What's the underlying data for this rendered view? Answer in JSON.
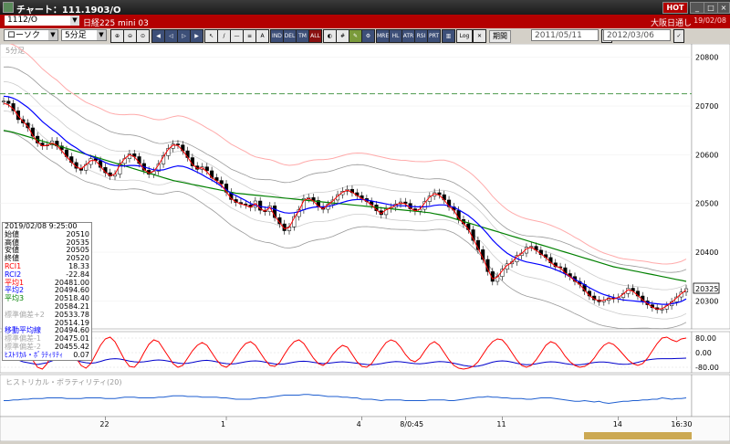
{
  "window": {
    "title": "チャート：111.1903/O",
    "hot_label": "HOT"
  },
  "symbol_bar": {
    "code": "1112/O",
    "name": "日経225 mini 03",
    "exchange": "大阪日通し",
    "date": "19/02/08"
  },
  "toolbar": {
    "chart_type": "ローソク",
    "interval": "5分足",
    "buttons": [
      "IND",
      "DEL",
      "TM",
      "ALL",
      "MRE",
      "HL",
      "ATR",
      "RSI",
      "PRT",
      "Log"
    ],
    "period_label": "期間",
    "date_from": "2011/05/11",
    "date_to": "2012/03/06"
  },
  "chart": {
    "interval_label": "5分足",
    "price_ticks": [
      "20800",
      "20700",
      "20600",
      "20500",
      "20400",
      "20300"
    ],
    "current_price": "20325",
    "osc_ticks": [
      "80.00",
      "0.00",
      "-80.00"
    ],
    "date_labels": [
      "22",
      "1",
      "4",
      "8/0:45",
      "11",
      "14",
      "16:30"
    ],
    "sub_title": "ヒストリカル・ボラティリティ(20)",
    "colors": {
      "price": "#000000",
      "ma_short": "#ff0000",
      "ma_mid": "#0000ff",
      "ma_long": "#008000",
      "bands": "#999999",
      "upper_band": "#ffaaaa"
    }
  },
  "chart_data": {
    "type": "line",
    "price_ylim": [
      20250,
      20820
    ],
    "candles_close": [
      20710,
      20705,
      20690,
      20672,
      20665,
      20655,
      20638,
      20624,
      20618,
      20620,
      20628,
      20618,
      20610,
      20596,
      20584,
      20572,
      20568,
      20580,
      20592,
      20588,
      20574,
      20563,
      20556,
      20560,
      20582,
      20592,
      20602,
      20596,
      20582,
      20568,
      20560,
      20566,
      20581,
      20598,
      20613,
      20622,
      20620,
      20608,
      20594,
      20577,
      20570,
      20575,
      20567,
      20553,
      20547,
      20540,
      20523,
      20508,
      20502,
      20499,
      20497,
      20492,
      20505,
      20486,
      20483,
      20495,
      20471,
      20458,
      20444,
      20452,
      20473,
      20487,
      20510,
      20512,
      20506,
      20493,
      20488,
      20498,
      20507,
      20518,
      20525,
      20529,
      20522,
      20516,
      20510,
      20504,
      20497,
      20485,
      20477,
      20489,
      20492,
      20499,
      20503,
      20500,
      20489,
      20484,
      20488,
      20504,
      20515,
      20522,
      20518,
      20507,
      20493,
      20486,
      20467,
      20458,
      20446,
      20424,
      20405,
      20385,
      20360,
      20340,
      20350,
      20365,
      20376,
      20380,
      20393,
      20398,
      20410,
      20412,
      20404,
      20395,
      20389,
      20378,
      20370,
      20368,
      20356,
      20350,
      20340,
      20334,
      20320,
      20310,
      20302,
      20298,
      20301,
      20306,
      20304,
      20307,
      20315,
      20326,
      20320,
      20310,
      20300,
      20292,
      20286,
      20282,
      20283,
      20290,
      20298,
      20308,
      20318,
      20325
    ],
    "ma_short": [
      20706,
      20702,
      20694,
      20680,
      20668,
      20658,
      20640,
      20626,
      20618,
      20619,
      20624,
      20619,
      20608,
      20596,
      20585,
      20575,
      20571,
      20579,
      20588,
      20588,
      20576,
      20564,
      20557,
      20560,
      20579,
      20592,
      20600,
      20596,
      20584,
      20570,
      20562,
      20566,
      20579,
      20596,
      20611,
      20620,
      20619,
      20608,
      20595,
      20580,
      20572,
      20573,
      20565,
      20553,
      20546,
      20538,
      20524,
      20510,
      20503,
      20499,
      20496,
      20492,
      20500,
      20489,
      20484,
      20492,
      20474,
      20461,
      20448,
      20451,
      20470,
      20485,
      20506,
      20510,
      20505,
      20494,
      20489,
      20497,
      20505,
      20515,
      20523,
      20527,
      20523,
      20516,
      20510,
      20504,
      20497,
      20487,
      20479,
      20487,
      20491,
      20497,
      20501,
      20499,
      20490,
      20485,
      20488,
      20501,
      20513,
      20520,
      20517,
      20507,
      20494,
      20486,
      20469,
      20459,
      20447,
      20427,
      20408,
      20388,
      20365,
      20345,
      20349,
      20362,
      20373,
      20379,
      20391,
      20397,
      20407,
      20410,
      20404,
      20396,
      20389,
      20379,
      20371,
      20368,
      20357,
      20350,
      20341,
      20334,
      20322,
      20311,
      20304,
      20300,
      20301,
      20305,
      20304,
      20307,
      20314,
      20323,
      20320,
      20311,
      20302,
      20294,
      20287,
      20283,
      20284,
      20290,
      20297,
      20306,
      20315,
      20322
    ],
    "ma_mid": [
      20720,
      20719,
      20716,
      20711,
      20704,
      20697,
      20688,
      20678,
      20668,
      20660,
      20652,
      20645,
      20636,
      20627,
      20620,
      20614,
      20607,
      20601,
      20597,
      20593,
      20589,
      20584,
      20580,
      20578,
      20577,
      20577,
      20578,
      20578,
      20577,
      20575,
      20572,
      20569,
      20568,
      20569,
      20572,
      20575,
      20577,
      20576,
      20573,
      20569,
      20564,
      20559,
      20553,
      20548,
      20542,
      20535,
      20528,
      20521,
      20516,
      20511,
      20506,
      20500,
      20496,
      20494,
      20492,
      20491,
      20488,
      20484,
      20481,
      20480,
      20481,
      20483,
      20487,
      20490,
      20492,
      20493,
      20493,
      20494,
      20496,
      20499,
      20502,
      20505,
      20507,
      20508,
      20508,
      20507,
      20505,
      20503,
      20501,
      20499,
      20497,
      20496,
      20495,
      20495,
      20494,
      20493,
      20493,
      20493,
      20494,
      20496,
      20497,
      20497,
      20495,
      20492,
      20487,
      20481,
      20475,
      20467,
      20458,
      20448,
      20437,
      20425,
      20415,
      20406,
      20398,
      20392,
      20387,
      20383,
      20380,
      20378,
      20376,
      20374,
      20371,
      20368,
      20364,
      20360,
      20355,
      20350,
      20344,
      20339,
      20333,
      20327,
      20322,
      20317,
      20313,
      20310,
      20307,
      20304,
      20302,
      20301,
      20300,
      20299,
      20298,
      20297,
      20295,
      20294,
      20293,
      20293,
      20294,
      20296,
      20299,
      20304
    ],
    "ma_long": [
      20650,
      20648,
      20646,
      20643,
      20640,
      20637,
      20634,
      20631,
      20628,
      20625,
      20622,
      20619,
      20616,
      20613,
      20610,
      20607,
      20604,
      20601,
      20598,
      20595,
      20592,
      20589,
      20586,
      20583,
      20580,
      20577,
      20574,
      20571,
      20568,
      20565,
      20562,
      20559,
      20556,
      20553,
      20550,
      20547,
      20545,
      20543,
      20541,
      20539,
      20537,
      20535,
      20533,
      20531,
      20529,
      20527,
      20525,
      20523,
      20521,
      20520,
      20519,
      20518,
      20517,
      20516,
      20515,
      20514,
      20513,
      20512,
      20511,
      20510,
      20509,
      20508,
      20507,
      20506,
      20505,
      20504,
      20503,
      20502,
      20501,
      20500,
      20499,
      20498,
      20497,
      20496,
      20495,
      20494,
      20493,
      20492,
      20491,
      20490,
      20489,
      20488,
      20487,
      20486,
      20485,
      20484,
      20483,
      20482,
      20481,
      20479,
      20477,
      20475,
      20472,
      20469,
      20466,
      20463,
      20460,
      20457,
      20454,
      20451,
      20448,
      20445,
      20442,
      20439,
      20436,
      20433,
      20430,
      20427,
      20424,
      20421,
      20418,
      20415,
      20412,
      20409,
      20406,
      20403,
      20400,
      20397,
      20394,
      20391,
      20388,
      20385,
      20382,
      20379,
      20376,
      20373,
      20370,
      20368,
      20366,
      20364,
      20362,
      20360,
      20358,
      20356,
      20354,
      20352,
      20350,
      20348,
      20346,
      20344,
      20342,
      20340
    ],
    "osc_ylim": [
      -100,
      100
    ],
    "rci_short": [
      20,
      50,
      75,
      80,
      60,
      20,
      -40,
      -80,
      -90,
      -60,
      0,
      50,
      80,
      70,
      30,
      -30,
      -70,
      -85,
      -60,
      -10,
      40,
      75,
      85,
      60,
      10,
      -40,
      -75,
      -80,
      -50,
      0,
      45,
      70,
      60,
      20,
      -20,
      -60,
      -80,
      -70,
      -30,
      10,
      40,
      55,
      40,
      0,
      -40,
      -70,
      -80,
      -60,
      -20,
      20,
      50,
      60,
      40,
      0,
      -40,
      -70,
      -75,
      -55,
      -10,
      30,
      60,
      70,
      50,
      10,
      -30,
      -60,
      -70,
      -50,
      -10,
      20,
      40,
      30,
      -10,
      -50,
      -75,
      -80,
      -60,
      -20,
      20,
      55,
      70,
      60,
      30,
      -10,
      -40,
      -50,
      -30,
      10,
      45,
      60,
      40,
      0,
      -40,
      -70,
      -85,
      -90,
      -85,
      -75,
      -50,
      -10,
      30,
      60,
      75,
      70,
      40,
      0,
      -40,
      -70,
      -80,
      -70,
      -40,
      0,
      40,
      60,
      50,
      20,
      -20,
      -50,
      -70,
      -80,
      -75,
      -60,
      -30,
      10,
      40,
      55,
      45,
      20,
      -10,
      -40,
      -60,
      -70,
      -60,
      -30,
      10,
      50,
      80,
      85,
      70,
      60,
      75,
      80
    ],
    "rci_long": [
      -20,
      -25,
      -30,
      -40,
      -50,
      -55,
      -60,
      -65,
      -60,
      -55,
      -45,
      -35,
      -30,
      -32,
      -35,
      -42,
      -50,
      -55,
      -58,
      -55,
      -48,
      -40,
      -35,
      -33,
      -35,
      -40,
      -46,
      -50,
      -52,
      -50,
      -46,
      -42,
      -40,
      -42,
      -46,
      -52,
      -57,
      -60,
      -58,
      -54,
      -48,
      -44,
      -42,
      -45,
      -50,
      -56,
      -60,
      -62,
      -60,
      -55,
      -50,
      -46,
      -45,
      -47,
      -52,
      -57,
      -62,
      -64,
      -62,
      -57,
      -52,
      -48,
      -47,
      -49,
      -53,
      -57,
      -60,
      -58,
      -55,
      -52,
      -50,
      -52,
      -55,
      -58,
      -62,
      -65,
      -66,
      -64,
      -60,
      -55,
      -51,
      -49,
      -50,
      -53,
      -57,
      -60,
      -61,
      -59,
      -55,
      -51,
      -49,
      -50,
      -53,
      -58,
      -64,
      -70,
      -74,
      -76,
      -74,
      -68,
      -60,
      -52,
      -47,
      -45,
      -47,
      -52,
      -58,
      -63,
      -66,
      -65,
      -61,
      -56,
      -52,
      -50,
      -51,
      -55,
      -60,
      -64,
      -66,
      -66,
      -63,
      -58,
      -54,
      -51,
      -51,
      -54,
      -58,
      -62,
      -64,
      -63,
      -59,
      -53,
      -46,
      -40,
      -36,
      -34,
      -33,
      -33,
      -33,
      -32,
      -31,
      -30
    ],
    "hv_ylim": [
      0,
      40
    ],
    "hv": [
      18,
      18,
      19,
      19,
      20,
      20,
      21,
      21,
      21,
      22,
      22,
      22,
      22,
      21,
      21,
      21,
      21,
      22,
      22,
      22,
      22,
      21,
      21,
      21,
      22,
      23,
      23,
      23,
      22,
      22,
      22,
      22,
      23,
      23,
      24,
      25,
      25,
      25,
      24,
      24,
      24,
      23,
      23,
      23,
      23,
      22,
      22,
      21,
      20,
      20,
      20,
      20,
      21,
      22,
      22,
      23,
      24,
      25,
      26,
      26,
      26,
      26,
      27,
      27,
      26,
      26,
      25,
      24,
      24,
      24,
      23,
      23,
      22,
      22,
      20,
      20,
      20,
      19,
      18,
      19,
      19,
      19,
      19,
      18,
      18,
      18,
      18,
      18,
      19,
      19,
      19,
      19,
      18,
      18,
      19,
      20,
      21,
      22,
      23,
      23,
      24,
      23,
      23,
      22,
      22,
      21,
      21,
      21,
      20,
      20,
      21,
      22,
      22,
      22,
      21,
      20,
      19,
      18,
      17,
      17,
      18,
      17,
      16,
      17,
      15,
      14,
      15,
      16,
      17,
      17,
      18,
      18,
      19,
      19,
      20,
      20,
      22,
      21,
      20,
      21,
      21,
      22
    ]
  },
  "info_panel": {
    "datetime": "2019/02/08  9:25:00",
    "rows": [
      {
        "label": "始値",
        "value": "20510",
        "color": "#000000"
      },
      {
        "label": "高値",
        "value": "20535",
        "color": "#000000"
      },
      {
        "label": "安値",
        "value": "20505",
        "color": "#000000"
      },
      {
        "label": "終値",
        "value": "20520",
        "color": "#000000"
      },
      {
        "label": "RCI1",
        "value": "18.33",
        "color": "#ff0000"
      },
      {
        "label": "RCI2",
        "value": "-22.84",
        "color": "#0000ff"
      },
      {
        "label": "平均1",
        "value": "20481.00",
        "color": "#ff0000"
      },
      {
        "label": "平均2",
        "value": "20494.60",
        "color": "#0000ff"
      },
      {
        "label": "平均3",
        "value": "20518.40",
        "color": "#008000"
      },
      {
        "label": "",
        "value": "20584.21",
        "color": "#cc8888"
      },
      {
        "label": "標準偏差+2",
        "value": "20533.78",
        "color": "#aaaaaa"
      },
      {
        "label": "",
        "value": "20514.19",
        "color": "#000000"
      },
      {
        "label": "移動平均線",
        "value": "20494.60",
        "color": "#0000ff"
      },
      {
        "label": "標準偏差-1",
        "value": "20475.01",
        "color": "#aaaaaa"
      },
      {
        "label": "標準偏差-2",
        "value": "20455.42",
        "color": "#aaaaaa"
      },
      {
        "label": "ﾋｽﾄﾘｶﾙ・ﾎﾞﾗﾃｨﾘﾃｨ",
        "value": "0.07",
        "color": "#0000ff"
      }
    ]
  }
}
